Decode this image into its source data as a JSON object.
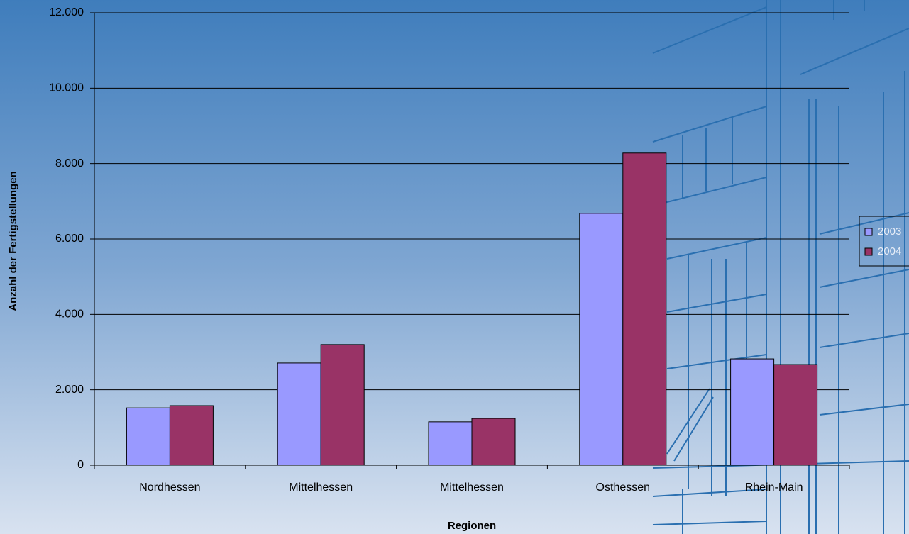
{
  "chart_data": {
    "type": "bar",
    "x_label": "Regionen",
    "y_label": "Anzahl der Fertigstellungen",
    "categories": [
      "Nordhessen",
      "Mittelhessen",
      "Mittelhessen",
      "Osthessen",
      "Rhein-Main"
    ],
    "series": [
      {
        "name": "2003",
        "color": "#9999ff",
        "values": [
          1520,
          2710,
          1150,
          6680,
          2820
        ]
      },
      {
        "name": "2004",
        "color": "#993366",
        "values": [
          1580,
          3200,
          1240,
          8280,
          2670
        ]
      }
    ],
    "ylim": [
      0,
      12000
    ],
    "yticks": [
      0,
      {
        "value": 2000,
        "label": "2.000"
      },
      {
        "value": 4000,
        "label": "4.000"
      },
      {
        "value": 6000,
        "label": "6.000"
      },
      {
        "value": 8000,
        "label": "8.000"
      },
      {
        "value": 10000,
        "label": "10.000"
      },
      {
        "value": 12000,
        "label": "12.000"
      }
    ],
    "grid": true,
    "legend": "right"
  }
}
